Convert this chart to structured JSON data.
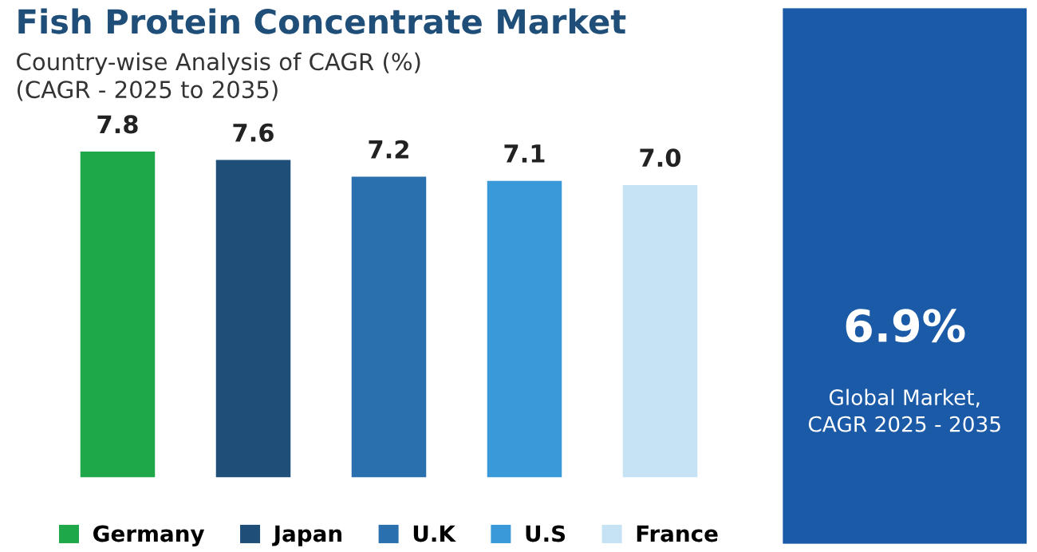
{
  "chart_data": [
    {
      "type": "bar",
      "title": "Fish Protein Concentrate Market",
      "subtitle": "Country-wise Analysis of CAGR (%)\n(CAGR - 2025 to 2035)",
      "categories": [
        null,
        null,
        null,
        null,
        null
      ],
      "series": [
        {
          "name": "Germany",
          "color": "#1fa84a",
          "values": [
            7.8,
            null,
            null,
            null,
            null
          ],
          "value_labels": [
            "7.8",
            null,
            null,
            null,
            null
          ]
        },
        {
          "name": "Japan",
          "color": "#1f4e79",
          "values": [
            null,
            7.6,
            null,
            null,
            null
          ],
          "value_labels": [
            null,
            "7.6",
            null,
            null,
            null
          ]
        },
        {
          "name": "U.K",
          "color": "#2a6fae",
          "values": [
            null,
            null,
            7.2,
            null,
            null
          ],
          "value_labels": [
            null,
            null,
            "7.2",
            null,
            null
          ]
        },
        {
          "name": "U.S",
          "color": "#3a9ad9",
          "values": [
            null,
            null,
            null,
            7.1,
            null
          ],
          "value_labels": [
            null,
            null,
            null,
            "7.1",
            null
          ]
        },
        {
          "name": "France",
          "color": "#c6e2f5",
          "values": [
            null,
            null,
            null,
            null,
            7.0
          ],
          "value_labels": [
            null,
            null,
            null,
            null,
            "7.0"
          ]
        }
      ],
      "stacked": true,
      "legend": "bottom"
    },
    {
      "type": "other",
      "title": "6.9%",
      "annotations": [
        "Global Market,\nCAGR 2025 - 2035"
      ]
    }
  ]
}
